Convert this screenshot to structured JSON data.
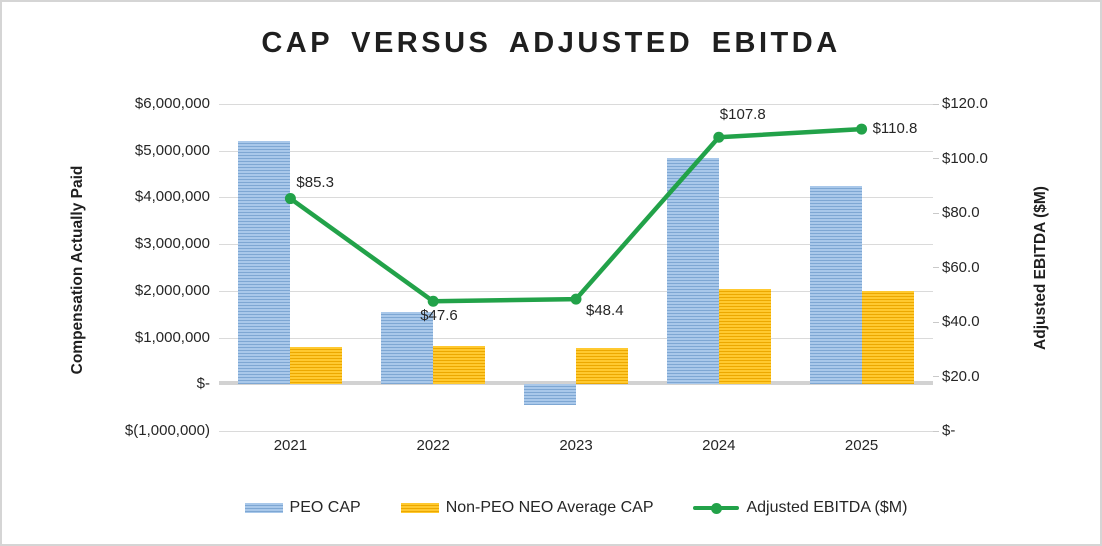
{
  "chart_data": {
    "type": "bar",
    "subtype": "combo-bar-line-dual-axis",
    "title": "CAP VERSUS ADJUSTED EBITDA",
    "categories": [
      "2021",
      "2022",
      "2023",
      "2024",
      "2025"
    ],
    "series": [
      {
        "name": "PEO CAP",
        "type": "bar",
        "axis": "left",
        "color": "#8fb4dd",
        "color_light": "#a9c8ea",
        "color_dark": "#7ea7d3",
        "values": [
          5200000,
          1550000,
          -450000,
          4850000,
          4250000
        ]
      },
      {
        "name": "Non-PEO NEO Average CAP",
        "type": "bar",
        "axis": "left",
        "color": "#ffc120",
        "color_light": "#ffc930",
        "color_dark": "#eca800",
        "values": [
          800000,
          820000,
          780000,
          2050000,
          2000000
        ]
      },
      {
        "name": "Adjusted EBITDA ($M)",
        "type": "line",
        "axis": "right",
        "color": "#22a249",
        "values": [
          85.3,
          47.6,
          48.4,
          107.8,
          110.8
        ],
        "point_labels": [
          "$85.3",
          "$47.6",
          "$48.4",
          "$107.8",
          "$110.8"
        ],
        "label_positions": [
          "above-right",
          "below-left",
          "below-right",
          "above",
          "right"
        ]
      }
    ],
    "left_axis": {
      "title": "Compensation Actually Paid",
      "min": -1000000,
      "max": 6000000,
      "step": 1000000,
      "tick_labels": [
        "$6,000,000",
        "$5,000,000",
        "$4,000,000",
        "$3,000,000",
        "$2,000,000",
        "$1,000,000",
        "$-",
        "$(1,000,000)"
      ]
    },
    "right_axis": {
      "title": "Adjusted EBITDA ($M)",
      "min": 0,
      "max": 120,
      "step": 20,
      "tick_labels": [
        "$120.0",
        "$100.0",
        "$80.0",
        "$60.0",
        "$40.0",
        "$20.0",
        "$-"
      ]
    },
    "grid": true,
    "legend_position": "bottom",
    "legend": [
      "PEO CAP",
      "Non-PEO NEO Average CAP",
      "Adjusted EBITDA ($M)"
    ]
  }
}
